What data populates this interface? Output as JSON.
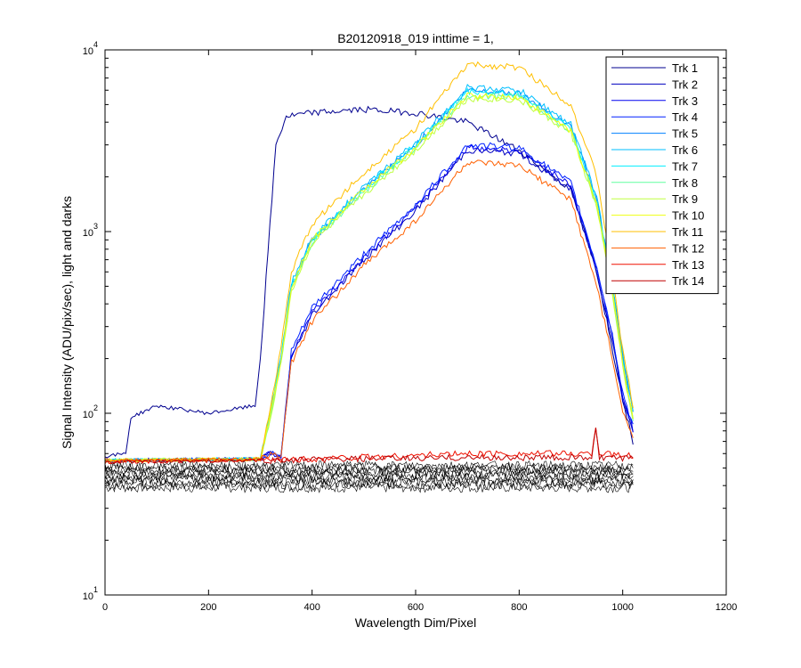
{
  "chart_data": {
    "type": "line",
    "title": "B20120918_019 inttime = 1,",
    "xlabel": "Wavelength Dim/Pixel",
    "ylabel": "Signal Intensity (ADU/pix/sec), light and darks",
    "xlim": [
      0,
      1200
    ],
    "ylim": [
      10,
      10000
    ],
    "yscale": "log",
    "grid": false,
    "legend_position": "top-right",
    "x_ticks": [
      "0",
      "200",
      "400",
      "600",
      "800",
      "1000",
      "1200"
    ],
    "y_ticks": [
      {
        "base": "10",
        "exp": "1"
      },
      {
        "base": "10",
        "exp": "2"
      },
      {
        "base": "10",
        "exp": "3"
      },
      {
        "base": "10",
        "exp": "4"
      }
    ],
    "series": [
      {
        "name": "Trk 1",
        "color": "#00008F",
        "x": [
          0,
          40,
          50,
          100,
          200,
          290,
          300,
          330,
          350,
          400,
          500,
          600,
          700,
          800,
          900,
          950,
          1000,
          1020
        ],
        "y": [
          58,
          60,
          95,
          110,
          100,
          110,
          200,
          3000,
          4300,
          4500,
          4700,
          4500,
          4000,
          2800,
          1700,
          600,
          120,
          70
        ]
      },
      {
        "name": "Trk 2",
        "color": "#0000BF",
        "x": [
          0,
          300,
          320,
          340,
          360,
          400,
          500,
          600,
          700,
          800,
          900,
          950,
          980,
          1000,
          1020
        ],
        "y": [
          55,
          56,
          60,
          58,
          200,
          350,
          700,
          1300,
          2800,
          2700,
          1700,
          600,
          250,
          120,
          80
        ]
      },
      {
        "name": "Trk 3",
        "color": "#0000EF",
        "x": [
          0,
          300,
          320,
          340,
          360,
          400,
          500,
          600,
          700,
          800,
          900,
          950,
          980,
          1000,
          1020
        ],
        "y": [
          55,
          56,
          60,
          58,
          210,
          360,
          720,
          1350,
          2900,
          2800,
          1800,
          620,
          260,
          125,
          82
        ]
      },
      {
        "name": "Trk 4",
        "color": "#0020FF",
        "x": [
          0,
          300,
          320,
          340,
          360,
          400,
          500,
          600,
          700,
          800,
          900,
          950,
          980,
          1000,
          1020
        ],
        "y": [
          55,
          56,
          60,
          58,
          220,
          380,
          750,
          1400,
          3000,
          2900,
          1850,
          640,
          270,
          130,
          84
        ]
      },
      {
        "name": "Trk 5",
        "color": "#0080FF",
        "x": [
          0,
          300,
          320,
          340,
          360,
          400,
          500,
          600,
          700,
          800,
          900,
          950,
          980,
          1000,
          1020
        ],
        "y": [
          55,
          56,
          100,
          200,
          500,
          900,
          1700,
          3000,
          6000,
          5800,
          3800,
          1500,
          500,
          200,
          100
        ]
      },
      {
        "name": "Trk 6",
        "color": "#00BFFF",
        "x": [
          0,
          300,
          320,
          340,
          360,
          400,
          500,
          600,
          700,
          800,
          900,
          950,
          980,
          1000,
          1020
        ],
        "y": [
          55,
          56,
          105,
          210,
          520,
          930,
          1750,
          3100,
          6200,
          6000,
          3900,
          1550,
          520,
          210,
          105
        ]
      },
      {
        "name": "Trk 7",
        "color": "#00EFFF",
        "x": [
          0,
          300,
          320,
          340,
          360,
          400,
          500,
          600,
          700,
          800,
          900,
          950,
          980,
          1000,
          1020
        ],
        "y": [
          55,
          56,
          100,
          200,
          500,
          900,
          1700,
          3000,
          5900,
          5700,
          3700,
          1450,
          480,
          190,
          95
        ]
      },
      {
        "name": "Trk 8",
        "color": "#60FF9F",
        "x": [
          0,
          300,
          320,
          340,
          360,
          400,
          500,
          600,
          700,
          800,
          900,
          950,
          980,
          1000,
          1020
        ],
        "y": [
          55,
          56,
          95,
          190,
          480,
          870,
          1650,
          2900,
          5600,
          5500,
          3600,
          1400,
          470,
          185,
          92
        ]
      },
      {
        "name": "Trk 9",
        "color": "#BFFF40",
        "x": [
          0,
          300,
          320,
          340,
          360,
          400,
          500,
          600,
          700,
          800,
          900,
          950,
          980,
          1000,
          1020
        ],
        "y": [
          55,
          56,
          95,
          190,
          470,
          860,
          1600,
          2800,
          5400,
          5300,
          3500,
          1350,
          460,
          180,
          90
        ]
      },
      {
        "name": "Trk 10",
        "color": "#EFFF10",
        "x": [
          0,
          300,
          320,
          340,
          360,
          400,
          500,
          600,
          700,
          800,
          900,
          950,
          980,
          1000,
          1020
        ],
        "y": [
          55,
          56,
          100,
          200,
          500,
          900,
          1700,
          2900,
          5600,
          5500,
          3600,
          1400,
          480,
          190,
          95
        ]
      },
      {
        "name": "Trk 11",
        "color": "#FFBF00",
        "x": [
          0,
          300,
          320,
          340,
          360,
          400,
          500,
          600,
          700,
          800,
          900,
          950,
          980,
          1000,
          1020
        ],
        "y": [
          55,
          56,
          110,
          230,
          600,
          1100,
          2100,
          3700,
          8300,
          8000,
          5000,
          2000,
          600,
          220,
          110
        ]
      },
      {
        "name": "Trk 12",
        "color": "#FF6000",
        "x": [
          0,
          300,
          320,
          340,
          360,
          400,
          500,
          600,
          700,
          800,
          900,
          950,
          980,
          1000,
          1020
        ],
        "y": [
          55,
          56,
          60,
          58,
          190,
          320,
          650,
          1150,
          2400,
          2300,
          1500,
          500,
          200,
          100,
          75
        ]
      },
      {
        "name": "Trk 13",
        "color": "#EF1000",
        "x": [
          0,
          300,
          700,
          800,
          940,
          948,
          955,
          1020
        ],
        "y": [
          54,
          55,
          60,
          60,
          60,
          85,
          60,
          58
        ]
      },
      {
        "name": "Trk 14",
        "color": "#BF0000",
        "x": [
          0,
          300,
          700,
          800,
          940,
          948,
          955,
          1020
        ],
        "y": [
          54,
          55,
          57,
          57,
          57,
          80,
          57,
          56
        ]
      }
    ]
  }
}
